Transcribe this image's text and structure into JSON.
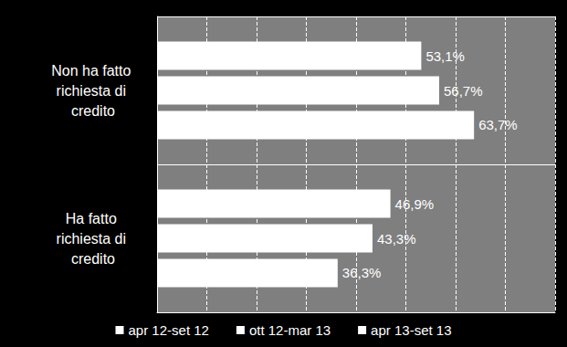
{
  "chart_data": {
    "type": "bar",
    "orientation": "horizontal",
    "categories": [
      "Non ha fatto richiesta di credito",
      "Ha fatto richiesta di credito"
    ],
    "series": [
      {
        "name": "apr 12-set 12",
        "color": "#ffffff",
        "values": [
          53.1,
          46.9
        ],
        "value_labels": [
          "53,1%",
          "46,9%"
        ]
      },
      {
        "name": "ott 12-mar 13",
        "color": "#ffffff",
        "values": [
          56.7,
          43.3
        ],
        "value_labels": [
          "56,7%",
          "43,3%"
        ]
      },
      {
        "name": "apr 13-set 13",
        "color": "#ffffff",
        "values": [
          63.7,
          36.3
        ],
        "value_labels": [
          "63,7%",
          "36,3%"
        ]
      }
    ],
    "xlim": [
      0,
      80
    ],
    "xticks": [
      0,
      10,
      20,
      30,
      40,
      50,
      60,
      70,
      80
    ],
    "grid": true,
    "legend": "bottom",
    "data_labels": true,
    "tick_labels": "y"
  }
}
